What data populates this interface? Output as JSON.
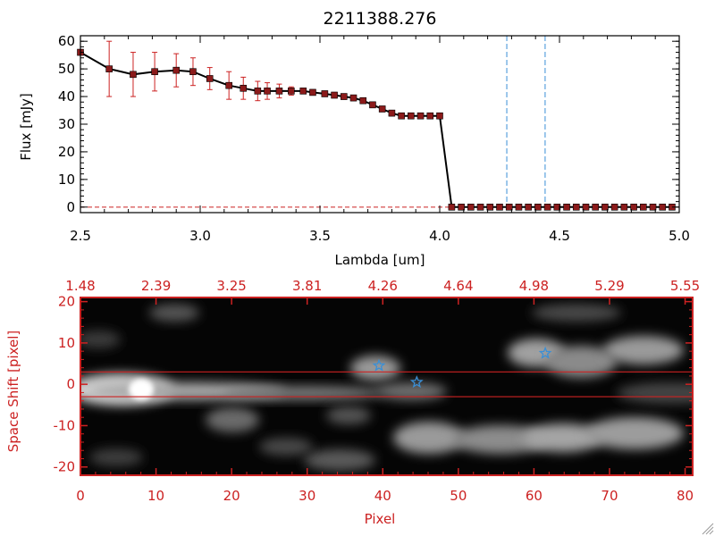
{
  "colors": {
    "axis_top": "#000000",
    "axis_bottom": "#cc2222",
    "data_line": "#000000",
    "marker": "#8b1a1a",
    "errorbar": "#cc2222",
    "dashed": "#3a8fd6",
    "band": "#cc2222",
    "star": "#3a8fd6"
  },
  "chart_data": [
    {
      "type": "line",
      "title": "2211388.276",
      "xlabel": "Lambda [um]",
      "ylabel": "Flux [mJy]",
      "xlim": [
        2.5,
        5.0
      ],
      "ylim": [
        -2,
        62
      ],
      "xticks": [
        2.5,
        3.0,
        3.5,
        4.0,
        4.5,
        5.0
      ],
      "xtick_labels": [
        "2.5",
        "3.0",
        "3.5",
        "4.0",
        "4.5",
        "5.0"
      ],
      "yticks": [
        0,
        10,
        20,
        30,
        40,
        50,
        60
      ],
      "ytick_labels": [
        "0",
        "10",
        "20",
        "30",
        "40",
        "50",
        "60"
      ],
      "vlines": [
        4.28,
        4.44
      ],
      "series": [
        {
          "x": [
            2.5,
            2.62,
            2.72,
            2.81,
            2.9,
            2.97,
            3.04,
            3.12,
            3.18,
            3.24,
            3.28,
            3.33,
            3.38,
            3.43,
            3.47,
            3.52,
            3.56,
            3.6,
            3.64,
            3.68,
            3.72,
            3.76,
            3.8,
            3.84,
            3.88,
            3.92,
            3.96,
            4.0,
            4.05,
            4.09,
            4.13,
            4.17,
            4.21,
            4.25,
            4.29,
            4.33,
            4.37,
            4.41,
            4.45,
            4.49,
            4.53,
            4.57,
            4.61,
            4.65,
            4.69,
            4.73,
            4.77,
            4.81,
            4.85,
            4.89,
            4.93,
            4.97
          ],
          "y": [
            56,
            50,
            48,
            49,
            49.5,
            49,
            46.5,
            44,
            43,
            42,
            42,
            42,
            42,
            42,
            41.5,
            41,
            40.5,
            40,
            39.5,
            38.5,
            37,
            35.5,
            34,
            33,
            33,
            33,
            33,
            33,
            0,
            0,
            0,
            0,
            0,
            0,
            0,
            0,
            0,
            0,
            0,
            0,
            0,
            0,
            0,
            0,
            0,
            0,
            0,
            0,
            0,
            0,
            0,
            0
          ],
          "yerr": [
            1,
            10,
            8,
            7,
            6,
            5,
            4,
            5,
            4,
            3.5,
            3,
            2.5,
            1.5,
            1,
            1,
            1,
            1,
            1,
            1,
            1,
            1,
            1,
            1,
            1,
            1,
            1,
            1,
            1,
            0,
            0,
            0,
            0,
            0,
            0,
            0,
            0,
            0,
            0,
            0,
            0,
            0,
            0,
            0,
            0,
            0,
            0,
            0,
            0,
            0,
            0,
            0,
            0
          ]
        }
      ]
    },
    {
      "type": "heatmap",
      "xlabel": "Pixel",
      "ylabel": "Space Shift [pixel]",
      "xlim": [
        0,
        81
      ],
      "ylim": [
        -22,
        21
      ],
      "xticks": [
        0,
        10,
        20,
        30,
        40,
        50,
        60,
        70,
        80
      ],
      "xtick_labels": [
        "0",
        "10",
        "20",
        "30",
        "40",
        "50",
        "60",
        "70",
        "80"
      ],
      "yticks": [
        -20,
        -10,
        0,
        10,
        20
      ],
      "ytick_labels": [
        "-20",
        "-10",
        "0",
        "10",
        "20"
      ],
      "top_tick_labels": [
        "1.48",
        "2.39",
        "3.25",
        "3.81",
        "4.26",
        "4.64",
        "4.98",
        "5.29",
        "5.55"
      ],
      "band_lines": [
        3,
        -3
      ],
      "stars": [
        {
          "x": 39.5,
          "y": 4.5
        },
        {
          "x": 44.5,
          "y": 0.5
        },
        {
          "x": 61.5,
          "y": 7.5
        }
      ]
    }
  ]
}
